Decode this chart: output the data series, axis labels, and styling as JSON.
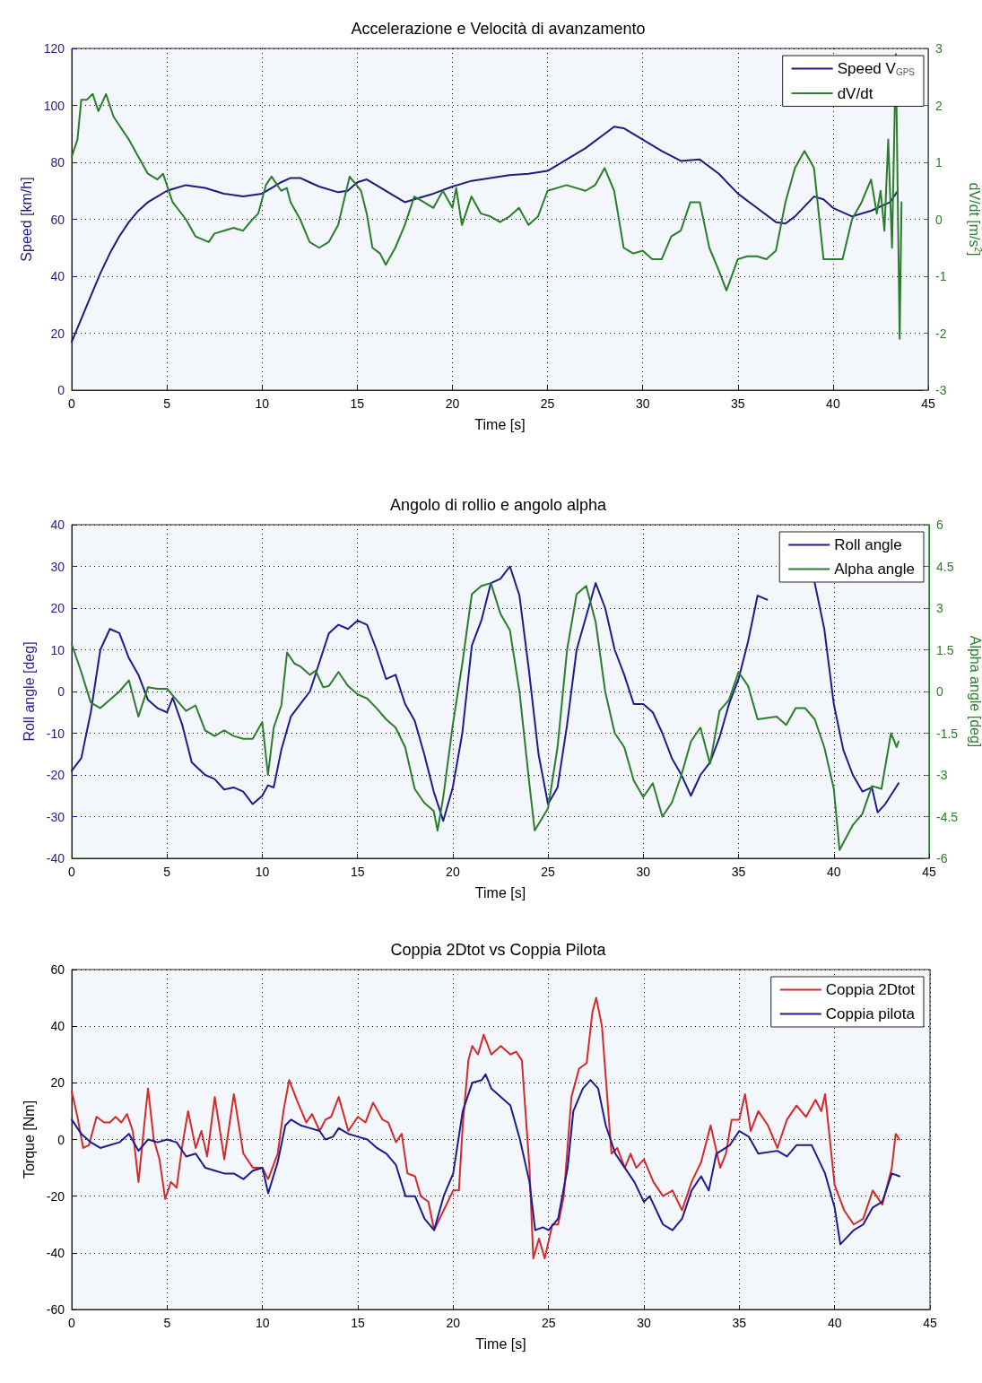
{
  "chart_data": [
    {
      "type": "line",
      "title": "Accelerazione e Velocità di avanzamento",
      "xlabel": "Time [s]",
      "ylabel": "Speed [km/h]",
      "y2label": "dV/dt [m/s$^{2}$]",
      "xlim": [
        0,
        45
      ],
      "xticks": [
        0,
        5,
        10,
        15,
        20,
        25,
        30,
        35,
        40,
        45
      ],
      "ylim": [
        0,
        120
      ],
      "yticks": [
        0,
        20,
        40,
        60,
        80,
        100,
        120
      ],
      "y2lim": [
        -3,
        3
      ],
      "y2ticks": [
        -3,
        -2,
        -1,
        0,
        1,
        2,
        3
      ],
      "grid": true,
      "legend": "top right",
      "marker": "none",
      "series": [
        {
          "name": "Speed V$_{GPS}$",
          "color": "#1c1c80",
          "x": [
            0,
            0.5,
            1,
            1.5,
            2,
            2.5,
            3,
            3.5,
            4,
            4.5,
            5,
            5.5,
            6,
            7,
            8,
            9,
            10,
            10.5,
            11,
            11.5,
            12,
            12.5,
            13,
            14,
            14.5,
            15,
            15.5,
            16,
            17,
            17.5,
            18,
            19,
            20,
            21,
            22,
            23,
            24,
            25,
            26,
            27,
            28,
            28.5,
            29,
            30,
            31,
            32,
            33,
            34,
            35,
            36,
            37,
            37.5,
            38,
            39,
            39.5,
            40,
            41,
            42,
            43,
            43.4
          ],
          "values": [
            17,
            25,
            33,
            41,
            48,
            54,
            59,
            63,
            66,
            68,
            70,
            71,
            72,
            71,
            69,
            68,
            69,
            71,
            73,
            74.5,
            74.5,
            73,
            71.5,
            69.5,
            70,
            73,
            74,
            72,
            68,
            66,
            67,
            69,
            71.5,
            73.5,
            74.5,
            75.5,
            76,
            77,
            81,
            85,
            90,
            92.5,
            92,
            88,
            84,
            80.5,
            81,
            76,
            69,
            64,
            59,
            58.5,
            61,
            68,
            67,
            64,
            61,
            63,
            66,
            70
          ]
        },
        {
          "name": "dV/dt",
          "color": "#2a7d2a",
          "axis": "y2",
          "x": [
            0,
            0.3,
            0.5,
            0.8,
            1.1,
            1.4,
            1.8,
            2.2,
            2.5,
            3,
            3.5,
            4,
            4.5,
            4.8,
            5.3,
            6,
            6.5,
            7.2,
            7.5,
            8,
            8.5,
            9,
            9.5,
            9.8,
            10.2,
            10.5,
            11,
            11.3,
            11.5,
            12,
            12.5,
            13,
            13.5,
            14,
            14.6,
            15.2,
            15.5,
            15.8,
            16.2,
            16.5,
            17,
            17.5,
            18,
            18.5,
            19,
            19.5,
            20,
            20.2,
            20.5,
            21,
            21.5,
            22,
            22.5,
            23,
            23.5,
            24,
            24.5,
            25,
            26,
            27,
            27.5,
            28,
            28.5,
            29,
            29.5,
            30,
            30.5,
            31,
            31.5,
            32,
            32.5,
            33,
            33.5,
            34,
            34.4,
            35,
            35.5,
            36,
            36.5,
            37,
            37.5,
            38,
            38.5,
            39,
            39.5,
            40,
            40.5,
            41,
            41.5,
            42,
            42.3,
            42.5,
            42.7,
            42.9,
            43.1,
            43.3,
            43.5,
            43.6
          ],
          "values": [
            1.1,
            1.4,
            2.1,
            2.1,
            2.2,
            1.9,
            2.2,
            1.8,
            1.65,
            1.4,
            1.1,
            0.8,
            0.7,
            0.8,
            0.3,
            0,
            -0.3,
            -0.4,
            -0.25,
            -0.2,
            -0.15,
            -0.2,
            0,
            0.1,
            0.6,
            0.75,
            0.5,
            0.55,
            0.3,
            0,
            -0.4,
            -0.5,
            -0.4,
            -0.1,
            0.75,
            0.5,
            0.1,
            -0.5,
            -0.6,
            -0.8,
            -0.5,
            -0.1,
            0.4,
            0.3,
            0.2,
            0.5,
            0.2,
            0.55,
            -0.1,
            0.4,
            0.1,
            0.05,
            -0.05,
            0.05,
            0.2,
            -0.1,
            0.05,
            0.5,
            0.6,
            0.5,
            0.6,
            0.9,
            0.5,
            -0.5,
            -0.6,
            -0.55,
            -0.7,
            -0.7,
            -0.3,
            -0.2,
            0.3,
            0.3,
            -0.5,
            -0.9,
            -1.25,
            -0.7,
            -0.65,
            -0.65,
            -0.7,
            -0.55,
            0.3,
            0.9,
            1.2,
            0.9,
            -0.7,
            -0.7,
            -0.7,
            0,
            0.3,
            0.7,
            0.1,
            0.5,
            -0.2,
            1.4,
            -0.5,
            2.9,
            -2.1,
            0.3
          ]
        }
      ]
    },
    {
      "type": "line",
      "title": "Angolo di rollio e angolo alpha",
      "xlabel": "Time [s]",
      "ylabel": "Roll angle [deg]",
      "y2label": "Alpha angle [deg]",
      "xlim": [
        0,
        45
      ],
      "xticks": [
        0,
        5,
        10,
        15,
        20,
        25,
        30,
        35,
        40,
        45
      ],
      "ylim": [
        -40,
        40
      ],
      "yticks": [
        -40,
        -30,
        -20,
        -10,
        0,
        10,
        20,
        30,
        40
      ],
      "y2lim": [
        -6,
        6
      ],
      "y2ticks": [
        -6,
        -4.5,
        -3,
        -1.5,
        0,
        1.5,
        3,
        4.5,
        6
      ],
      "grid": true,
      "legend": "top right",
      "marker": "none",
      "series": [
        {
          "name": "Roll angle",
          "color": "#1c1c8f",
          "x": [
            0,
            0.5,
            1,
            1.5,
            2,
            2.5,
            3,
            3.5,
            4,
            4.5,
            5,
            5.3,
            5.8,
            6.3,
            7,
            7.5,
            8,
            8.5,
            9,
            9.5,
            10,
            10.3,
            10.6,
            11,
            11.5,
            12,
            12.5,
            13,
            13.5,
            14,
            14.5,
            15,
            15.5,
            16,
            16.5,
            17,
            17.5,
            18,
            18.5,
            19,
            19.5,
            20,
            20.5,
            21,
            21.5,
            22,
            22.5,
            23,
            23.5,
            24,
            24.5,
            25,
            25.5,
            26,
            26.5,
            27,
            27.5,
            28,
            28.5,
            29,
            29.5,
            30,
            30.5,
            31,
            31.5,
            32,
            32.5,
            33,
            33.5,
            34,
            34.5,
            35,
            35.5,
            36,
            36.5,
            37,
            37.5,
            38.5,
            39,
            39.5,
            40,
            40.5,
            41,
            41.5,
            42,
            42.3,
            42.7,
            43.4
          ],
          "values": [
            -19,
            -16,
            -5,
            10,
            15,
            14,
            8,
            4,
            -2,
            -4,
            -5,
            -1.5,
            -8,
            -17,
            -20,
            -21,
            -23.5,
            -23,
            -24,
            -27,
            -25,
            -22.5,
            -23,
            -14,
            -6,
            -3,
            0,
            7,
            14,
            16,
            15,
            17,
            16,
            10,
            3,
            4,
            -3,
            -7,
            -15,
            -24,
            -31,
            -23,
            -10,
            11,
            17,
            26,
            27,
            30,
            23,
            5,
            -15,
            -27,
            -23,
            -8,
            10,
            18,
            26,
            20,
            10,
            4,
            -3,
            -3,
            -5,
            -10,
            -16,
            -20,
            -25,
            -20,
            -17,
            -11,
            -3,
            3,
            12,
            23,
            22,
            null,
            null,
            null,
            26,
            15,
            -3,
            -14,
            -20,
            -24,
            -23,
            -29,
            -27,
            -22
          ]
        },
        {
          "name": "Alpha angle",
          "color": "#2a7d2a",
          "axis": "y2",
          "x": [
            0,
            0.5,
            1,
            1.5,
            2,
            2.5,
            3,
            3.5,
            4,
            4.5,
            5,
            5.5,
            6,
            6.5,
            7,
            7.5,
            8,
            8.5,
            9,
            9.5,
            10,
            10.3,
            10.6,
            11,
            11.3,
            11.7,
            12,
            12.5,
            12.8,
            13.2,
            13.5,
            14,
            14.5,
            15,
            15.5,
            16,
            16.5,
            17,
            17.5,
            18,
            18.5,
            19,
            19.2,
            19.5,
            20,
            20.5,
            21,
            21.5,
            22,
            22.5,
            23,
            23.5,
            24,
            24.3,
            25,
            25.5,
            26,
            26.5,
            27,
            27.5,
            28,
            28.5,
            29,
            29.5,
            30,
            30.5,
            31,
            31.5,
            32,
            32.5,
            33,
            33.5,
            34,
            34.5,
            35,
            35.5,
            36,
            37,
            37.5,
            38,
            38.5,
            39,
            39.5,
            40,
            40.3,
            41,
            41.5,
            42,
            42.5,
            43,
            43.3,
            43.4
          ],
          "values": [
            1.7,
            0.7,
            -0.4,
            -0.6,
            -0.3,
            0,
            0.4,
            -0.9,
            0.15,
            0.1,
            0.1,
            -0.3,
            -0.7,
            -0.5,
            -1.4,
            -1.6,
            -1.4,
            -1.6,
            -1.7,
            -1.7,
            -1.1,
            -3,
            -1.3,
            -0.5,
            1.4,
            1,
            0.9,
            0.6,
            0.75,
            0.15,
            0.2,
            0.7,
            0.2,
            -0.1,
            -0.25,
            -0.6,
            -1,
            -1.3,
            -2,
            -3.5,
            -4,
            -4.3,
            -5,
            -3.8,
            -1.2,
            1,
            3.5,
            3.8,
            3.9,
            2.8,
            2.2,
            0,
            -3.2,
            -5,
            -4.2,
            -2,
            1.5,
            3.5,
            3.8,
            2.5,
            0,
            -1.5,
            -2,
            -3.2,
            -3.8,
            -3.3,
            -4.5,
            -4,
            -3,
            -1.8,
            -1.3,
            -2.6,
            -0.7,
            -0.3,
            0.7,
            0.2,
            -1,
            -0.9,
            -1.2,
            -0.6,
            -0.6,
            -1,
            -2,
            -3.5,
            -5.7,
            -4.8,
            -4.4,
            -3.4,
            -3.5,
            -1.5,
            -2,
            -1.8
          ]
        }
      ]
    },
    {
      "type": "line",
      "title": "Coppia 2Dtot vs Coppia Pilota",
      "xlabel": "Time [s]",
      "ylabel": "Torque [Nm]",
      "xlim": [
        0,
        45
      ],
      "xticks": [
        0,
        5,
        10,
        15,
        20,
        25,
        30,
        35,
        40,
        45
      ],
      "ylim": [
        -60,
        60
      ],
      "yticks": [
        -60,
        -40,
        -20,
        0,
        20,
        40,
        60
      ],
      "grid": true,
      "legend": "top right",
      "marker": "none",
      "series": [
        {
          "name": "Coppia 2Dtot",
          "color": "#d42a2a",
          "x": [
            0,
            0.3,
            0.6,
            0.9,
            1.3,
            1.7,
            2,
            2.3,
            2.6,
            2.9,
            3.2,
            3.5,
            3.8,
            4,
            4.3,
            4.6,
            4.9,
            5.2,
            5.5,
            5.8,
            6.1,
            6.5,
            6.8,
            7.1,
            7.5,
            8,
            8.5,
            9,
            9.5,
            10,
            10.3,
            10.8,
            11.1,
            11.4,
            11.8,
            12.3,
            12.6,
            13,
            13.3,
            13.6,
            14,
            14.5,
            15,
            15.4,
            15.8,
            16.3,
            16.6,
            17,
            17.3,
            17.6,
            18,
            18.3,
            18.7,
            19,
            19.5,
            20,
            20.3,
            20.5,
            20.8,
            21,
            21.3,
            21.6,
            22,
            22.5,
            23,
            23.3,
            23.6,
            24,
            24.2,
            24.5,
            24.8,
            25.2,
            25.5,
            25.8,
            26.2,
            26.6,
            27,
            27.3,
            27.5,
            27.8,
            28.3,
            28.6,
            29,
            29.3,
            29.6,
            30,
            30.5,
            31,
            31.5,
            32,
            32.5,
            33,
            33.5,
            34,
            34.3,
            34.6,
            35,
            35.3,
            35.6,
            36,
            36.5,
            37,
            37.5,
            38,
            38.5,
            39,
            39.3,
            39.5,
            40,
            40.5,
            41,
            41.5,
            42,
            42.5,
            43,
            43.2,
            43.4
          ],
          "values": [
            17,
            8,
            -3,
            -2,
            8,
            6,
            6,
            8,
            6,
            9,
            3,
            -15,
            5,
            18,
            0,
            -7,
            -21,
            -15,
            -17,
            -2,
            10,
            -3,
            3,
            -6,
            15,
            -7,
            16,
            -5,
            -10,
            -10,
            -14,
            -5,
            10,
            21,
            14,
            6,
            9,
            3,
            7,
            8,
            15,
            3,
            8,
            6,
            13,
            7,
            6,
            -1,
            2,
            -12,
            -13,
            -20,
            -22,
            -32,
            -25,
            -18,
            -18,
            5,
            28,
            33,
            30,
            37,
            30,
            33,
            30,
            31,
            28,
            -10,
            -42,
            -35,
            -42,
            -30,
            -30,
            -20,
            15,
            25,
            27,
            45,
            50,
            40,
            -5,
            -3,
            -10,
            -5,
            -10,
            -7,
            -15,
            -20,
            -18,
            -25,
            -15,
            -8,
            5,
            -10,
            -5,
            7,
            7,
            16,
            3,
            10,
            5,
            -3,
            7,
            12,
            8,
            14,
            10,
            16,
            -16,
            -25,
            -30,
            -28,
            -18,
            -23,
            -10,
            2,
            0
          ]
        },
        {
          "name": "Coppia pilota",
          "color": "#1c1c8f",
          "x": [
            0,
            0.5,
            1,
            1.5,
            2,
            2.5,
            3,
            3.5,
            4,
            4.5,
            5,
            5.5,
            6,
            6.5,
            7,
            7.5,
            8,
            8.5,
            9,
            9.5,
            10,
            10.3,
            10.8,
            11.2,
            11.5,
            12,
            12.5,
            13,
            13.3,
            13.7,
            14,
            14.5,
            15,
            15.5,
            16,
            16.5,
            17,
            17.5,
            18,
            18.5,
            19,
            19.5,
            20,
            20.5,
            21,
            21.5,
            21.7,
            22,
            23,
            23.5,
            24,
            24.3,
            24.7,
            25,
            25.5,
            26,
            26.3,
            26.8,
            27.2,
            27.6,
            28,
            28.5,
            29,
            29.5,
            30,
            30.3,
            31,
            31.5,
            32,
            32.5,
            33,
            33.4,
            33.8,
            34.5,
            35,
            35.5,
            36,
            37,
            37.5,
            38,
            38.8,
            39.5,
            40,
            40.3,
            41,
            41.5,
            42,
            42.5,
            43,
            43.4
          ],
          "values": [
            7,
            2,
            -1,
            -3,
            -2,
            -1,
            2,
            -4,
            0,
            -1,
            0,
            -1,
            -6,
            -5,
            -10,
            -11,
            -12,
            -12,
            -14,
            -11,
            -10,
            -19,
            -8,
            5,
            7,
            5,
            4,
            3,
            0,
            1,
            4,
            2,
            1,
            0,
            -3,
            -5,
            -9,
            -20,
            -20,
            -28,
            -32,
            -20,
            -12,
            10,
            20,
            21,
            23,
            18,
            12,
            0,
            -15,
            -32,
            -31,
            -32,
            -28,
            -10,
            10,
            18,
            21,
            18,
            5,
            -5,
            -10,
            -15,
            -22,
            -20,
            -30,
            -32,
            -28,
            -18,
            -13,
            -18,
            -5,
            -2,
            3,
            1,
            -5,
            -4,
            -6,
            -2,
            -2,
            -12,
            -24,
            -37,
            -32,
            -30,
            -24,
            -22,
            -12,
            -13
          ]
        }
      ]
    }
  ]
}
